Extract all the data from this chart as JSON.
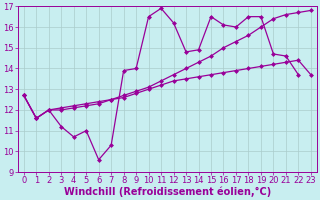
{
  "xlabel": "Windchill (Refroidissement éolien,°C)",
  "bg_color": "#c8eef0",
  "line_color": "#990099",
  "grid_color": "#aacccc",
  "xlim": [
    -0.5,
    23.5
  ],
  "ylim": [
    9,
    17
  ],
  "xticks": [
    0,
    1,
    2,
    3,
    4,
    5,
    6,
    7,
    8,
    9,
    10,
    11,
    12,
    13,
    14,
    15,
    16,
    17,
    18,
    19,
    20,
    21,
    22,
    23
  ],
  "yticks": [
    9,
    10,
    11,
    12,
    13,
    14,
    15,
    16,
    17
  ],
  "line1_x": [
    0,
    1,
    2,
    3,
    4,
    5,
    6,
    7,
    8,
    9,
    10,
    11,
    12,
    13,
    14,
    15,
    16,
    17,
    18,
    19,
    20,
    21,
    22,
    23
  ],
  "line1_y": [
    12.7,
    11.6,
    12.0,
    11.2,
    10.7,
    11.0,
    9.6,
    10.3,
    13.9,
    14.0,
    16.5,
    16.9,
    16.2,
    14.8,
    14.9,
    16.5,
    16.1,
    16.0,
    16.5,
    16.5,
    14.7,
    14.6,
    13.7,
    null
  ],
  "line2_x": [
    0,
    1,
    2,
    3,
    4,
    5,
    6,
    7,
    8,
    9,
    10,
    11,
    12,
    13,
    14,
    15,
    16,
    17,
    18,
    19,
    20,
    21,
    22,
    23
  ],
  "line2_y": [
    12.7,
    11.6,
    12.0,
    12.0,
    12.1,
    12.2,
    12.3,
    12.5,
    12.7,
    12.9,
    13.1,
    13.4,
    13.7,
    14.0,
    14.3,
    14.6,
    15.0,
    15.3,
    15.6,
    16.0,
    16.4,
    16.6,
    16.7,
    16.8
  ],
  "line3_x": [
    0,
    1,
    2,
    3,
    4,
    5,
    6,
    7,
    8,
    9,
    10,
    11,
    12,
    13,
    14,
    15,
    16,
    17,
    18,
    19,
    20,
    21,
    22,
    23
  ],
  "line3_y": [
    12.7,
    11.6,
    12.0,
    12.1,
    12.2,
    12.3,
    12.4,
    12.5,
    12.6,
    12.8,
    13.0,
    13.2,
    13.4,
    13.5,
    13.6,
    13.7,
    13.8,
    13.9,
    14.0,
    14.1,
    14.2,
    14.3,
    14.4,
    13.7
  ],
  "marker_size": 2.5,
  "line_width": 0.9,
  "font_color": "#990099",
  "font_size": 6,
  "xlabel_fontsize": 7,
  "tick_font_size": 6
}
